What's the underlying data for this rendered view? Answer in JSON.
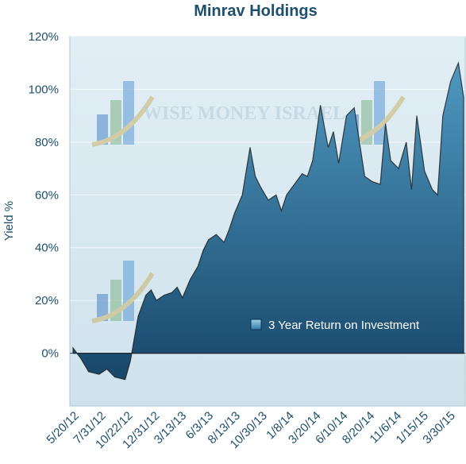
{
  "chart_data": {
    "type": "area",
    "title": "Minrav Holdings",
    "ylabel": "Yield %",
    "xlabel": "",
    "ylim": [
      -20,
      120
    ],
    "y_ticks": [
      "0%",
      "20%",
      "40%",
      "60%",
      "80%",
      "100%",
      "120%"
    ],
    "y_tick_values": [
      0,
      20,
      40,
      60,
      80,
      100,
      120
    ],
    "x_ticks": [
      "5/20/12",
      "7/31/12",
      "10/22/12",
      "12/31/12",
      "3/13/13",
      "6/3/13",
      "8/13/13",
      "10/30/13",
      "1/8/14",
      "3/20/14",
      "6/10/14",
      "8/20/14",
      "11/6/14",
      "1/15/15",
      "3/30/15"
    ],
    "grid": true,
    "legend_position": "bottom-right",
    "series": [
      {
        "name": "3 Year Return on Investment",
        "x": [
          0,
          0.3,
          0.6,
          1.0,
          1.3,
          1.6,
          2.0,
          2.2,
          2.5,
          2.8,
          3.0,
          3.2,
          3.5,
          3.8,
          4.0,
          4.2,
          4.5,
          4.8,
          5.0,
          5.2,
          5.5,
          5.8,
          6.0,
          6.2,
          6.5,
          6.8,
          7.0,
          7.2,
          7.5,
          7.8,
          8.0,
          8.2,
          8.5,
          8.8,
          9.0,
          9.2,
          9.5,
          9.8,
          10.0,
          10.2,
          10.5,
          10.8,
          11.0,
          11.2,
          11.5,
          11.8,
          12.0,
          12.2,
          12.5,
          12.8,
          13.0,
          13.2,
          13.5,
          13.8,
          14.0,
          14.2,
          14.5,
          14.8,
          15.0
        ],
        "values": [
          2,
          -2,
          -7,
          -8,
          -6,
          -9,
          -10,
          -3,
          14,
          22,
          24,
          20,
          22,
          23,
          25,
          21,
          28,
          33,
          39,
          43,
          45,
          42,
          47,
          53,
          60,
          78,
          67,
          63,
          58,
          60,
          54,
          60,
          64,
          68,
          67,
          73,
          94,
          78,
          84,
          72,
          90,
          93,
          80,
          67,
          65,
          64,
          87,
          73,
          70,
          80,
          62,
          90,
          69,
          62,
          60,
          90,
          103,
          110,
          97
        ]
      }
    ],
    "colors": {
      "area_top": "#4d95bd",
      "area_bottom": "#1b4d6c",
      "background": "#dbe9f1",
      "text": "#1d4f6e"
    },
    "watermark": "WISE MONEY ISRAEL"
  }
}
